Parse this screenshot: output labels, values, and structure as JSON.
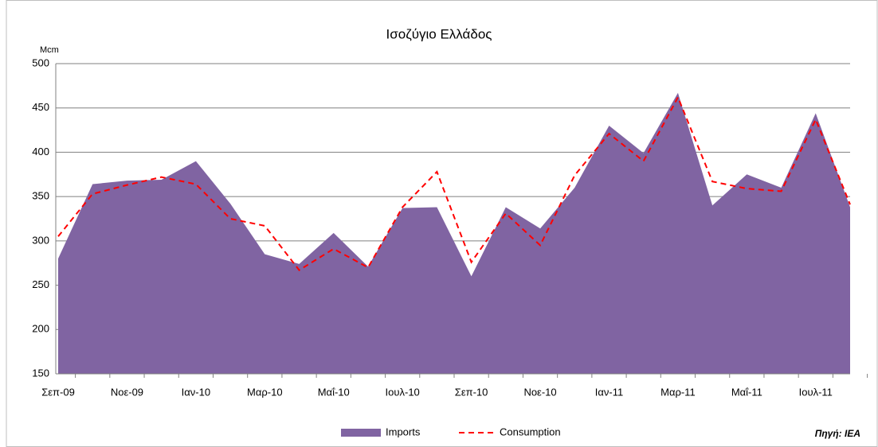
{
  "chart_data": {
    "type": "area_line",
    "title": "Ισοζύγιο Ελλάδος",
    "y_axis_label": "Mcm",
    "source": "Πηγή: IEA",
    "categories": [
      "Σεπ-09",
      null,
      "Νοε-09",
      null,
      "Ιαν-10",
      null,
      "Μαρ-10",
      null,
      "Μαΐ-10",
      null,
      "Ιουλ-10",
      null,
      "Σεπ-10",
      null,
      "Νοε-10",
      null,
      "Ιαν-11",
      null,
      "Μαρ-11",
      null,
      "Μαΐ-11",
      null,
      "Ιουλ-11",
      null
    ],
    "series": [
      {
        "name": "Imports",
        "color": "#8064a2",
        "style": "area",
        "values": [
          280,
          364,
          368,
          369,
          390,
          342,
          285,
          274,
          309,
          271,
          337,
          338,
          260,
          338,
          314,
          360,
          430,
          399,
          467,
          340,
          375,
          360,
          444,
          338
        ]
      },
      {
        "name": "Consumption",
        "color": "#ff0000",
        "style": "dashed",
        "values": [
          305,
          353,
          363,
          372,
          364,
          325,
          317,
          267,
          291,
          270,
          338,
          378,
          276,
          331,
          295,
          374,
          421,
          390,
          462,
          367,
          359,
          356,
          437,
          341
        ]
      }
    ],
    "ylim": [
      150,
      500
    ],
    "yticks": [
      150,
      200,
      250,
      300,
      350,
      400,
      450,
      500
    ],
    "grid": true
  }
}
